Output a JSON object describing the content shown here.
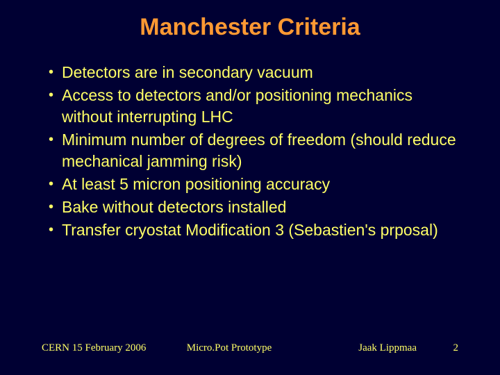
{
  "slide": {
    "title": "Manchester Criteria",
    "title_color": "#ff9933",
    "title_fontsize": 34,
    "background_color": "#000033",
    "text_color": "#ffff66",
    "body_fontsize": 23,
    "bullets": [
      "Detectors are in secondary vacuum",
      "Access to detectors and/or positioning mechanics without interrupting LHC",
      "Minimum number of degrees of freedom (should reduce mechanical jamming risk)",
      "At least 5 micron positioning accuracy",
      "Bake without detectors installed",
      "Transfer cryostat Modification 3 (Sebastien's prposal)"
    ],
    "footer": {
      "left": "CERN 15 February 2006",
      "center": "Micro.Pot Prototype",
      "right": "Jaak Lippmaa",
      "page": "2",
      "fontsize": 15
    }
  }
}
